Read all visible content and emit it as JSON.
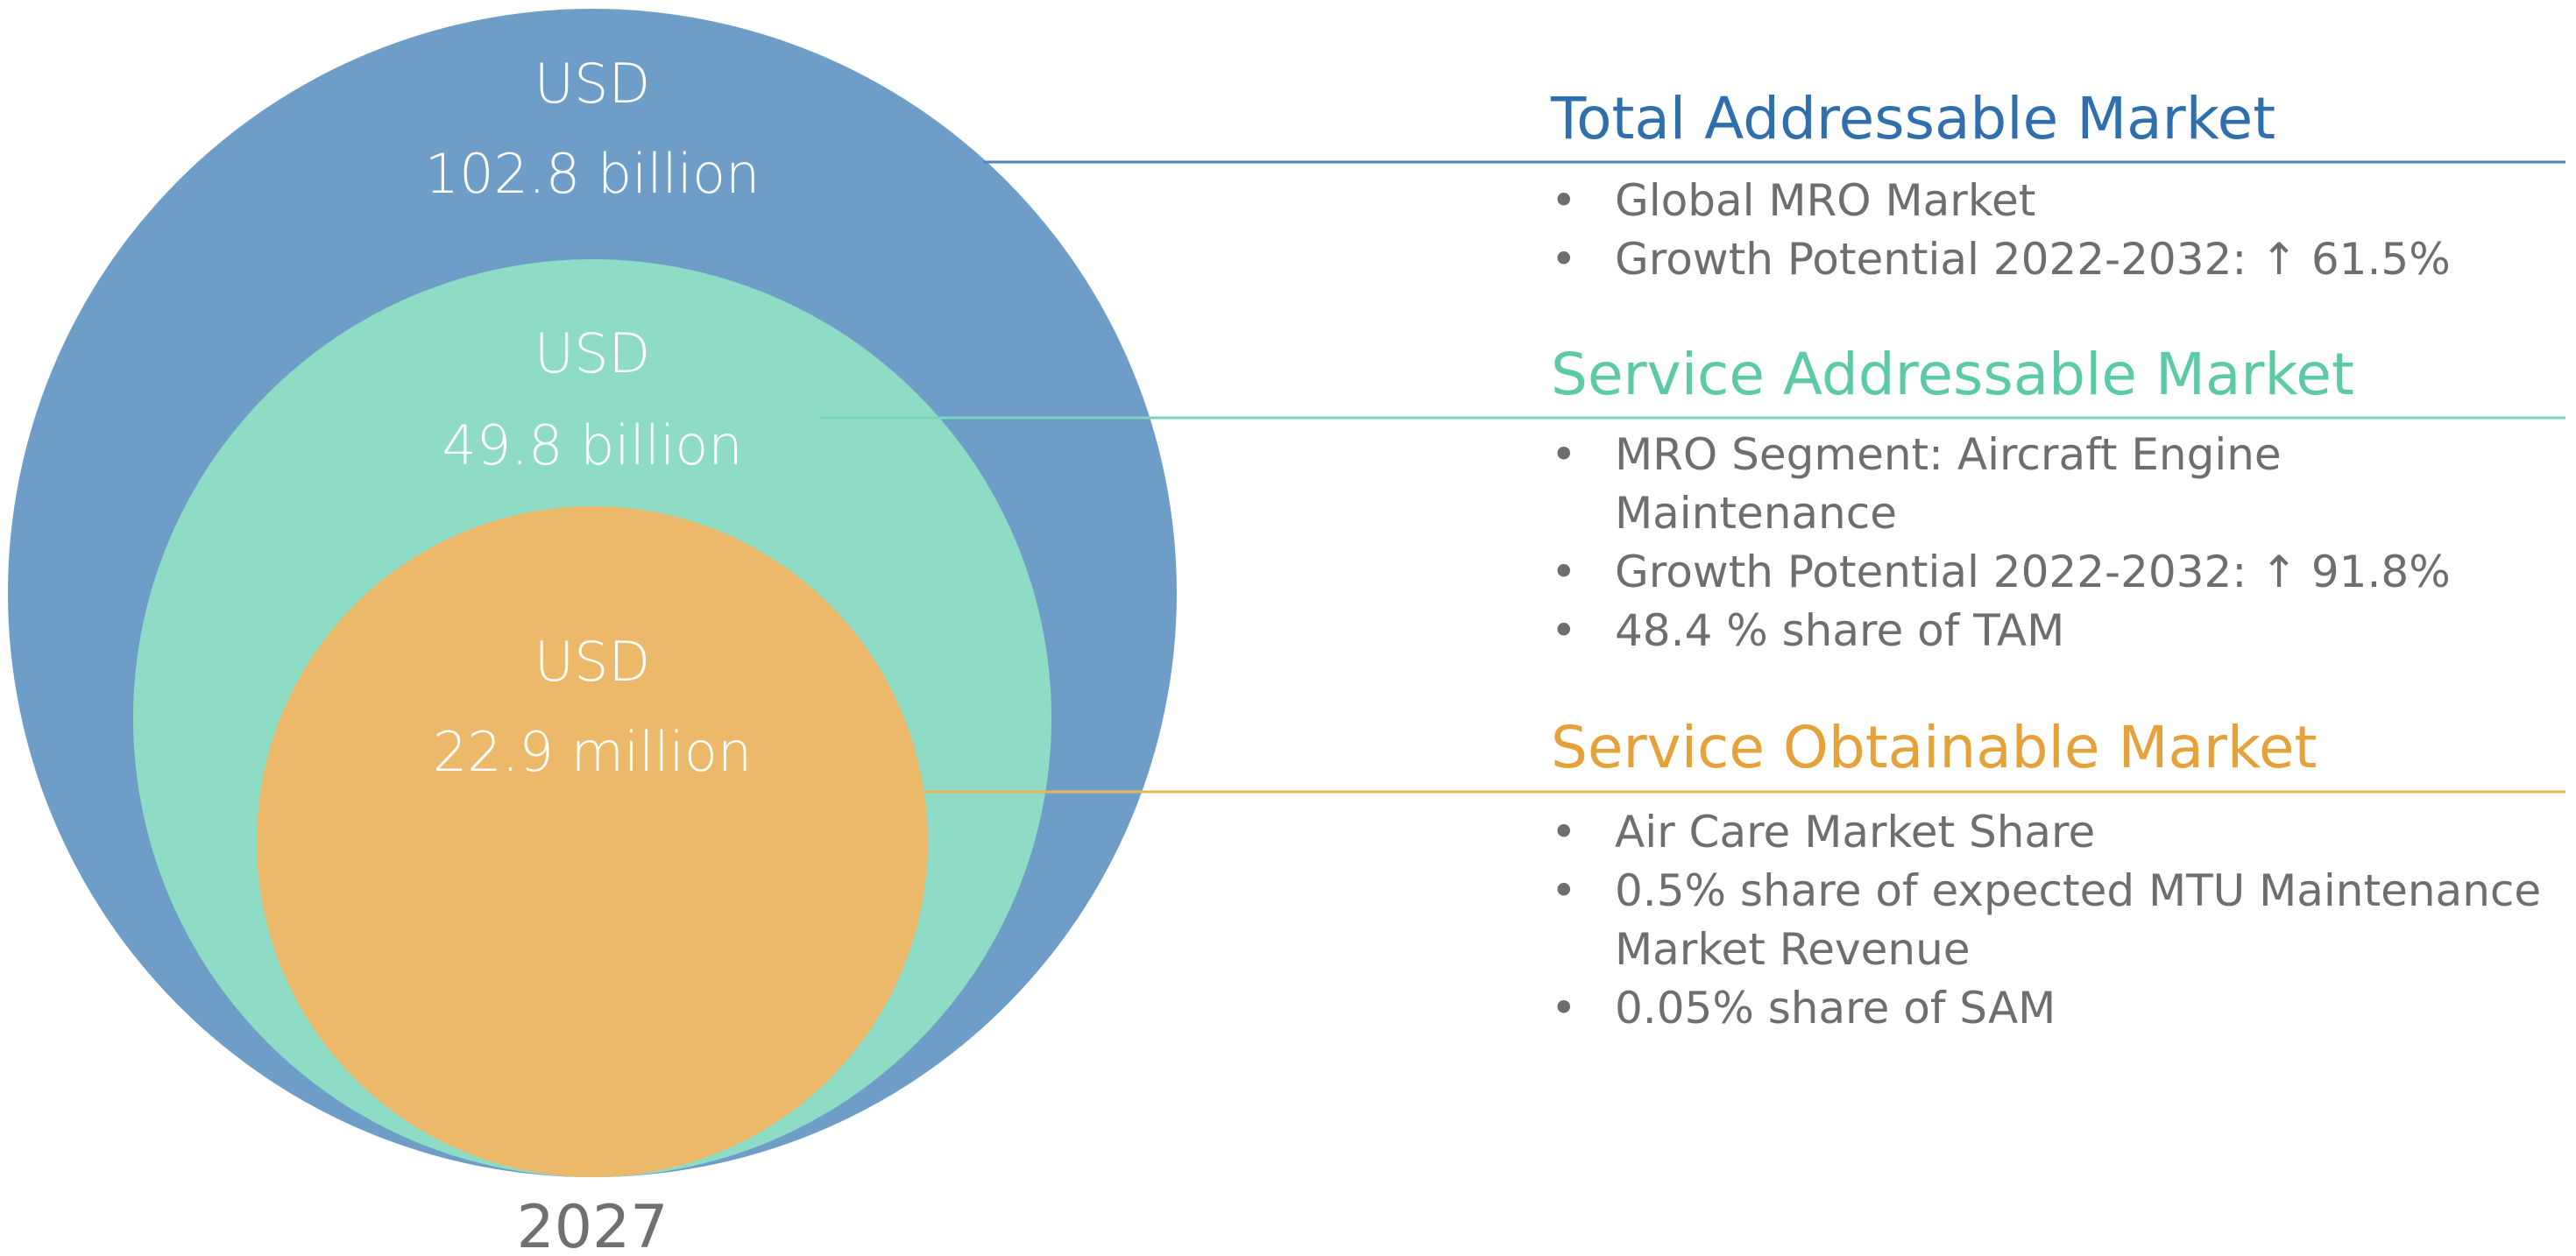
{
  "colors": {
    "tam": "#6e9ec7",
    "tam_text": "#2f6fae",
    "sam": "#8fdcc6",
    "sam_text": "#5cc9a7",
    "som": "#ebb969",
    "som_text": "#e5a23a",
    "body_text": "#6e6e6e",
    "year_text": "#707070",
    "circle_text": "#ffffff"
  },
  "year": "2027",
  "circles": {
    "tam": {
      "line1": "USD",
      "line2": "102.8 billion"
    },
    "sam": {
      "line1": "USD",
      "line2": "49.8 billion"
    },
    "som": {
      "line1": "USD",
      "line2": "22.9 million"
    }
  },
  "sections": {
    "tam": {
      "heading": "Total Addressable Market",
      "bullets": [
        [
          "Global MRO Market"
        ],
        [
          "Growth Potential 2022-2032: ↑ 61.5%"
        ]
      ]
    },
    "sam": {
      "heading": "Service Addressable Market",
      "bullets": [
        [
          "MRO Segment: Aircraft Engine",
          "Maintenance"
        ],
        [
          "Growth Potential 2022-2032: ↑ 91.8%"
        ],
        [
          "48.4 % share of TAM"
        ]
      ]
    },
    "som": {
      "heading": "Service Obtainable Market",
      "bullets": [
        [
          "Air Care Market Share"
        ],
        [
          "0.5% share of expected MTU Maintenance",
          "Market Revenue"
        ],
        [
          "0.05% share of SAM"
        ]
      ]
    }
  }
}
